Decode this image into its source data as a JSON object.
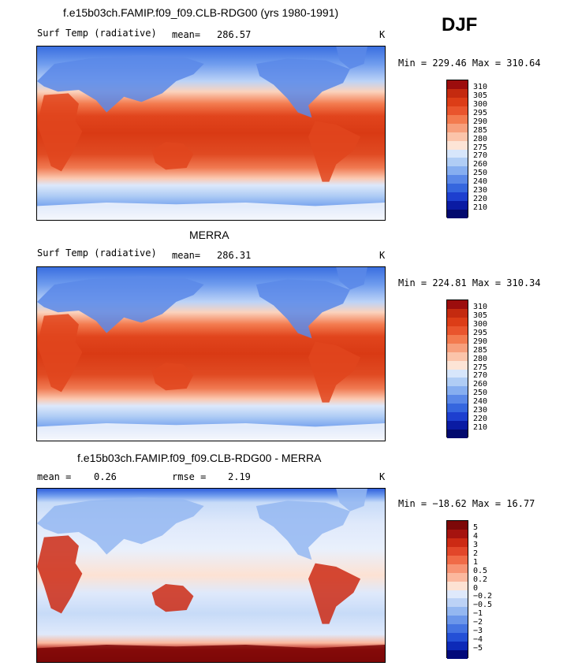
{
  "season": "DJF",
  "panels": [
    {
      "title": "f.e15b03ch.FAMIP.f09_f09.CLB-RDG00 (yrs 1980-1991)",
      "left_label": "Surf Temp (radiative)",
      "center_label": "mean=",
      "center_value": "286.57",
      "units": "K",
      "minmax": "Min = 229.46 Max = 310.64"
    },
    {
      "title": "MERRA",
      "left_label": "Surf Temp (radiative)",
      "center_label": "mean=",
      "center_value": "286.31",
      "units": "K",
      "minmax": "Min = 224.81 Max = 310.34"
    },
    {
      "title": "f.e15b03ch.FAMIP.f09_f09.CLB-RDG00 - MERRA",
      "left_label": "mean =",
      "left_value": "0.26",
      "center_label": "rmse =",
      "center_value": "2.19",
      "units": "K",
      "minmax": "Min = −18.62 Max =  16.77"
    }
  ],
  "chart_data": [
    {
      "type": "heatmap",
      "title": "f.e15b03ch.FAMIP.f09_f09.CLB-RDG00 (yrs 1980-1991)",
      "variable": "Surf Temp (radiative)",
      "units": "K",
      "mean": 286.57,
      "min": 229.46,
      "max": 310.64,
      "contour_levels": [
        310,
        305,
        300,
        295,
        290,
        285,
        280,
        275,
        270,
        260,
        250,
        240,
        230,
        220,
        210
      ],
      "colors": [
        "#9c0d0d",
        "#c42a0f",
        "#dc3d17",
        "#e9552d",
        "#f37b4f",
        "#f79f7c",
        "#fbc4aa",
        "#fde4d6",
        "#d7e6fb",
        "#b0cdf5",
        "#86aef0",
        "#5a88e8",
        "#3566de",
        "#1d3fcf",
        "#0a1ba3",
        "#020a6e"
      ]
    },
    {
      "type": "heatmap",
      "title": "MERRA",
      "variable": "Surf Temp (radiative)",
      "units": "K",
      "mean": 286.31,
      "min": 224.81,
      "max": 310.34,
      "contour_levels": [
        310,
        305,
        300,
        295,
        290,
        285,
        280,
        275,
        270,
        260,
        250,
        240,
        230,
        220,
        210
      ],
      "colors": [
        "#9c0d0d",
        "#c42a0f",
        "#dc3d17",
        "#e9552d",
        "#f37b4f",
        "#f79f7c",
        "#fbc4aa",
        "#fde4d6",
        "#d7e6fb",
        "#b0cdf5",
        "#86aef0",
        "#5a88e8",
        "#3566de",
        "#1d3fcf",
        "#0a1ba3",
        "#020a6e"
      ]
    },
    {
      "type": "heatmap",
      "title": "f.e15b03ch.FAMIP.f09_f09.CLB-RDG00 - MERRA",
      "units": "K",
      "mean": 0.26,
      "rmse": 2.19,
      "min": -18.62,
      "max": 16.77,
      "contour_levels": [
        "5",
        "4",
        "3",
        "2",
        "1",
        "0.5",
        "0.2",
        "0",
        "−0.2",
        "−0.5",
        "−1",
        "−2",
        "−3",
        "−4",
        "−5"
      ],
      "colors": [
        "#7d0808",
        "#a5130f",
        "#cc2a14",
        "#e2472a",
        "#f06b47",
        "#f79373",
        "#fbb89e",
        "#fde2d3",
        "#dfe9fb",
        "#bcd2f6",
        "#94b7f1",
        "#6b96ea",
        "#4574e2",
        "#2450d6",
        "#0d2ab8",
        "#020a7a"
      ]
    }
  ]
}
